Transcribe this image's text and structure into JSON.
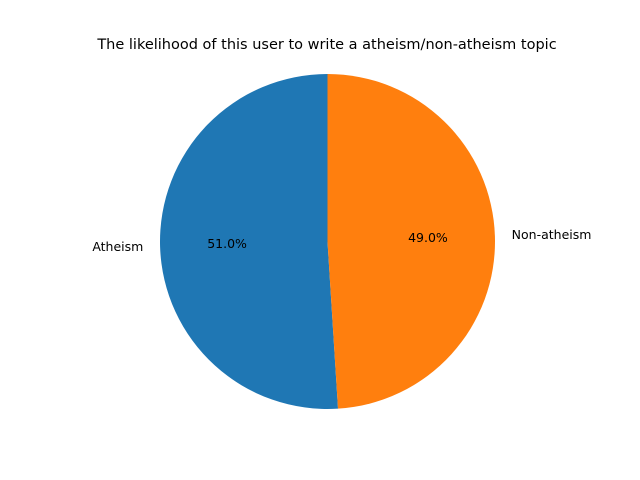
{
  "chart_data": {
    "type": "pie",
    "title": "The likelihood of this user to write a atheism/non-atheism topic",
    "slices": [
      {
        "label": "Atheism",
        "value": 51.0,
        "pct_label": "51.0%",
        "color": "#1f77b4"
      },
      {
        "label": "Non-atheism",
        "value": 49.0,
        "pct_label": "49.0%",
        "color": "#ff7f0e"
      }
    ],
    "start_angle": 90,
    "direction": "counterclockwise",
    "legend": "none"
  }
}
